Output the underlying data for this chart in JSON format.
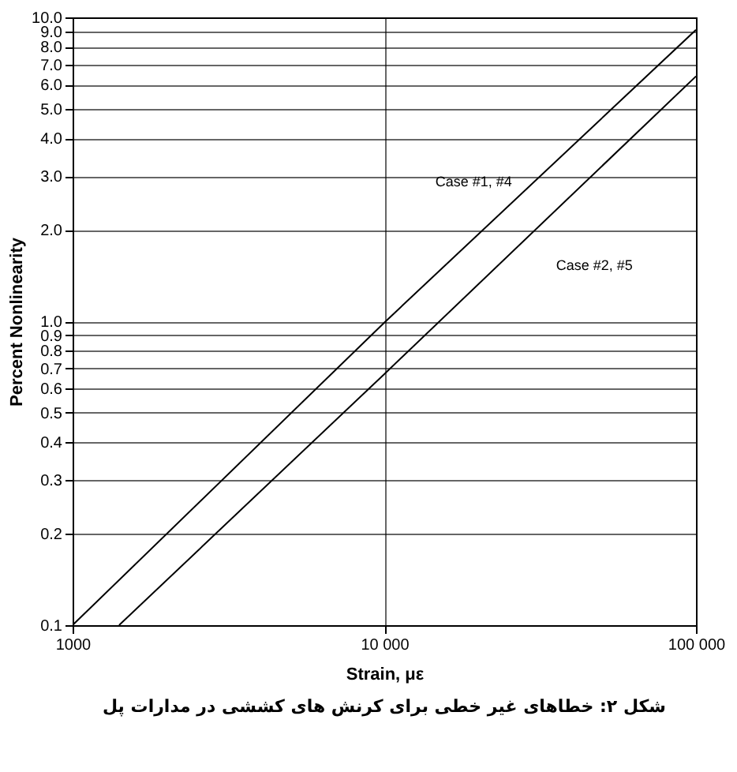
{
  "chart_data": {
    "type": "line",
    "xlabel": "Strain, με",
    "ylabel": "Percent Nonlinearity",
    "annotations": [
      "شکل ۲: خطاهای غیر خطی برای کرنش های کششی در مدارات پل"
    ],
    "log": "xy",
    "grid": true,
    "legend": false,
    "marker": "none",
    "line_style": "solid",
    "xlim": [
      1000,
      100000
    ],
    "xticks": [
      1000,
      {
        "value": 10000,
        "label": "10 000"
      },
      {
        "value": 100000,
        "label": "100 000"
      }
    ],
    "ylim": [
      0.1,
      10
    ],
    "yticks": [
      0.1,
      0.2,
      0.3,
      0.4,
      0.5,
      0.6,
      0.7,
      0.8,
      0.9,
      {
        "value": 1,
        "label": "1.0"
      },
      {
        "value": 2,
        "label": "2.0"
      },
      {
        "value": 3,
        "label": "3.0"
      },
      {
        "value": 4,
        "label": "4.0"
      },
      {
        "value": 5,
        "label": "5.0"
      },
      {
        "value": 6,
        "label": "6.0"
      },
      {
        "value": 7,
        "label": "7.0"
      },
      {
        "value": 8,
        "label": "8.0"
      },
      {
        "value": 9,
        "label": "9.0"
      },
      {
        "value": 10,
        "label": "10.0"
      }
    ],
    "series": [
      {
        "name": "Case #1, #4",
        "color": "#000000",
        "x": [
          1000,
          10000,
          100000
        ],
        "values": [
          0.1,
          0.99,
          9.1
        ]
      },
      {
        "name": "Case #2, #5",
        "color": "#000000",
        "x": [
          1410,
          10000,
          100000
        ],
        "values": [
          0.1,
          0.67,
          6.4
        ]
      }
    ]
  }
}
